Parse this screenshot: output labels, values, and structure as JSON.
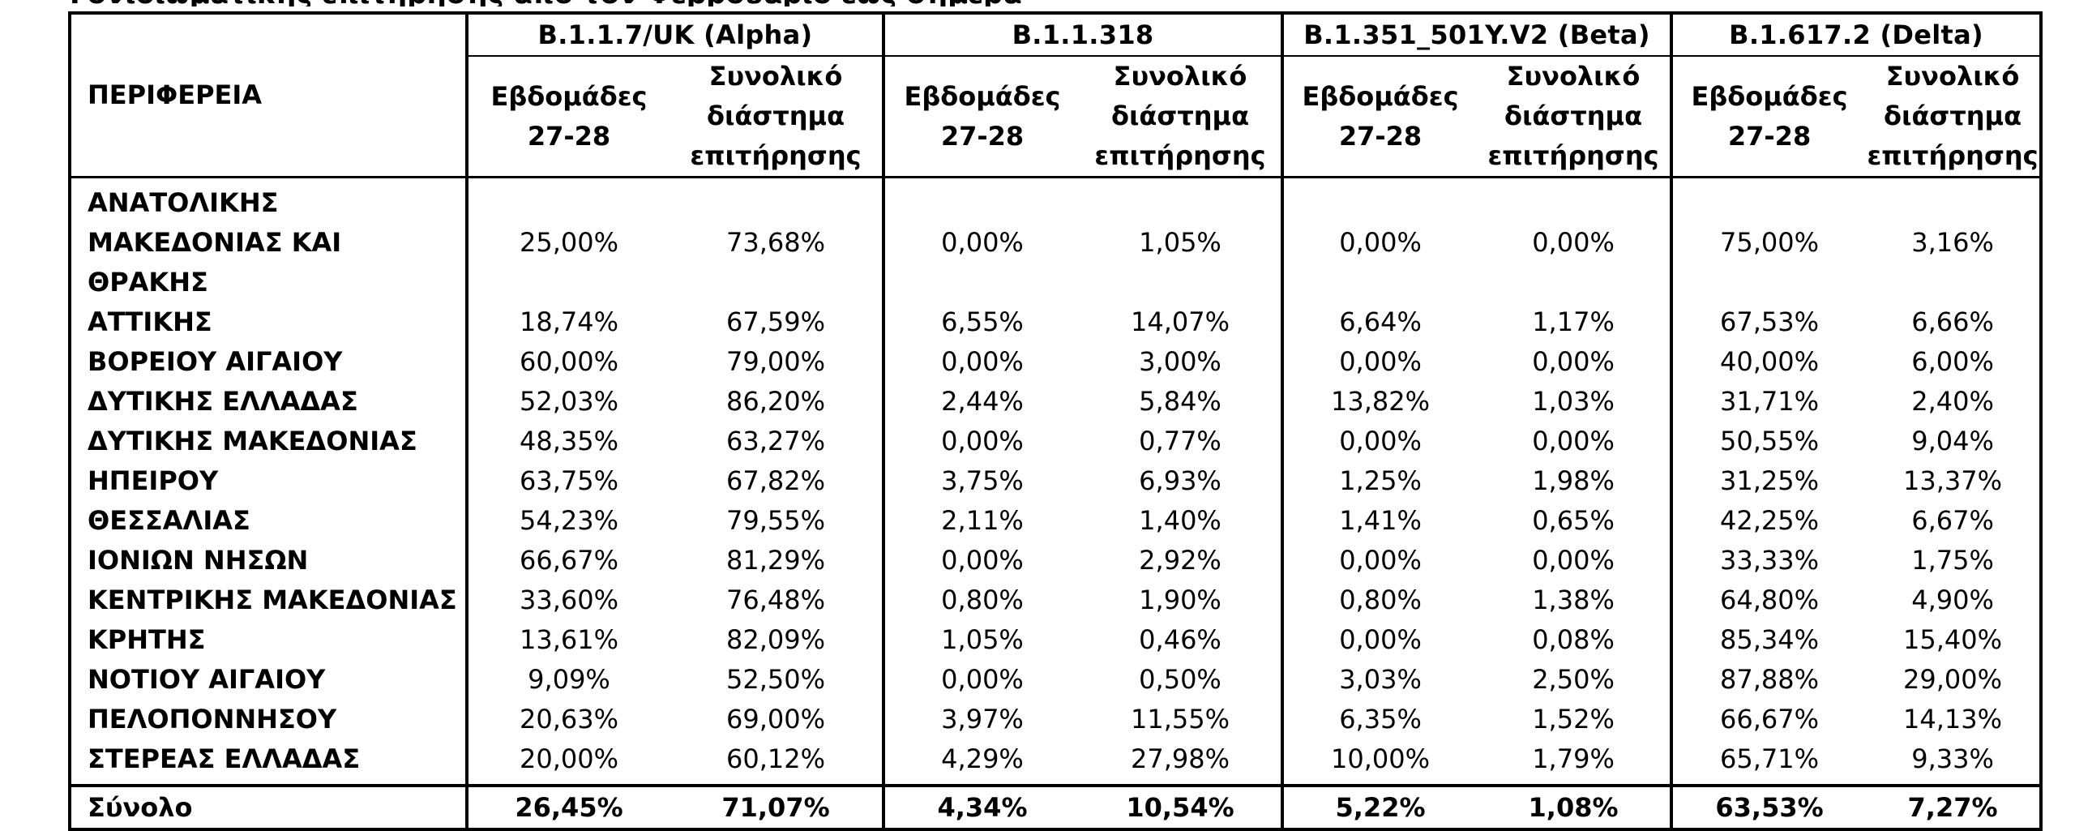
{
  "caption_fragment": "Γονιδιωματικής επιτήρησης από τον Φεβρουάριο έως σήμερα",
  "table": {
    "region_header": "ΠΕΡΙΦΕΡΕΙΑ",
    "variants": [
      "B.1.1.7/UK  (Alpha)",
      "B.1.1.318",
      "B.1.351_501Y.V2 (Beta)",
      "B.1.617.2 (Delta)"
    ],
    "sub_headers": {
      "weeks": [
        "Εβδομάδες",
        "27-28"
      ],
      "total_period": [
        "Συνολικό",
        "διάστημα",
        "επιτήρησης"
      ]
    },
    "rows": [
      {
        "region": "ΑΝΑΤΟΛΙΚΗΣ ΜΑΚΕΔΟΝΙΑΣ ΚΑΙ ΘΡΑΚΗΣ",
        "values": [
          "25,00%",
          "73,68%",
          "0,00%",
          "1,05%",
          "0,00%",
          "0,00%",
          "75,00%",
          "3,16%"
        ]
      },
      {
        "region": "ΑΤΤΙΚΗΣ",
        "values": [
          "18,74%",
          "67,59%",
          "6,55%",
          "14,07%",
          "6,64%",
          "1,17%",
          "67,53%",
          "6,66%"
        ]
      },
      {
        "region": "ΒΟΡΕΙΟΥ ΑΙΓΑΙΟΥ",
        "values": [
          "60,00%",
          "79,00%",
          "0,00%",
          "3,00%",
          "0,00%",
          "0,00%",
          "40,00%",
          "6,00%"
        ]
      },
      {
        "region": "ΔΥΤΙΚΗΣ ΕΛΛΑΔΑΣ",
        "values": [
          "52,03%",
          "86,20%",
          "2,44%",
          "5,84%",
          "13,82%",
          "1,03%",
          "31,71%",
          "2,40%"
        ]
      },
      {
        "region": "ΔΥΤΙΚΗΣ ΜΑΚΕΔΟΝΙΑΣ",
        "values": [
          "48,35%",
          "63,27%",
          "0,00%",
          "0,77%",
          "0,00%",
          "0,00%",
          "50,55%",
          "9,04%"
        ]
      },
      {
        "region": "ΗΠΕΙΡΟΥ",
        "values": [
          "63,75%",
          "67,82%",
          "3,75%",
          "6,93%",
          "1,25%",
          "1,98%",
          "31,25%",
          "13,37%"
        ]
      },
      {
        "region": "ΘΕΣΣΑΛΙΑΣ",
        "values": [
          "54,23%",
          "79,55%",
          "2,11%",
          "1,40%",
          "1,41%",
          "0,65%",
          "42,25%",
          "6,67%"
        ]
      },
      {
        "region": "ΙΟΝΙΩΝ ΝΗΣΩΝ",
        "values": [
          "66,67%",
          "81,29%",
          "0,00%",
          "2,92%",
          "0,00%",
          "0,00%",
          "33,33%",
          "1,75%"
        ]
      },
      {
        "region": "ΚΕΝΤΡΙΚΗΣ ΜΑΚΕΔΟΝΙΑΣ",
        "values": [
          "33,60%",
          "76,48%",
          "0,80%",
          "1,90%",
          "0,80%",
          "1,38%",
          "64,80%",
          "4,90%"
        ]
      },
      {
        "region": "ΚΡΗΤΗΣ",
        "values": [
          "13,61%",
          "82,09%",
          "1,05%",
          "0,46%",
          "0,00%",
          "0,08%",
          "85,34%",
          "15,40%"
        ]
      },
      {
        "region": "ΝΟΤΙΟΥ ΑΙΓΑΙΟΥ",
        "values": [
          "9,09%",
          "52,50%",
          "0,00%",
          "0,50%",
          "3,03%",
          "2,50%",
          "87,88%",
          "29,00%"
        ]
      },
      {
        "region": "ΠΕΛΟΠΟΝΝΗΣΟΥ",
        "values": [
          "20,63%",
          "69,00%",
          "3,97%",
          "11,55%",
          "6,35%",
          "1,52%",
          "66,67%",
          "14,13%"
        ]
      },
      {
        "region": "ΣΤΕΡΕΑΣ ΕΛΛΑΔΑΣ",
        "values": [
          "20,00%",
          "60,12%",
          "4,29%",
          "27,98%",
          "10,00%",
          "1,79%",
          "65,71%",
          "9,33%"
        ]
      }
    ],
    "total": {
      "label": "Σύνολο",
      "values": [
        "26,45%",
        "71,07%",
        "4,34%",
        "10,54%",
        "5,22%",
        "1,08%",
        "63,53%",
        "7,27%"
      ]
    }
  }
}
